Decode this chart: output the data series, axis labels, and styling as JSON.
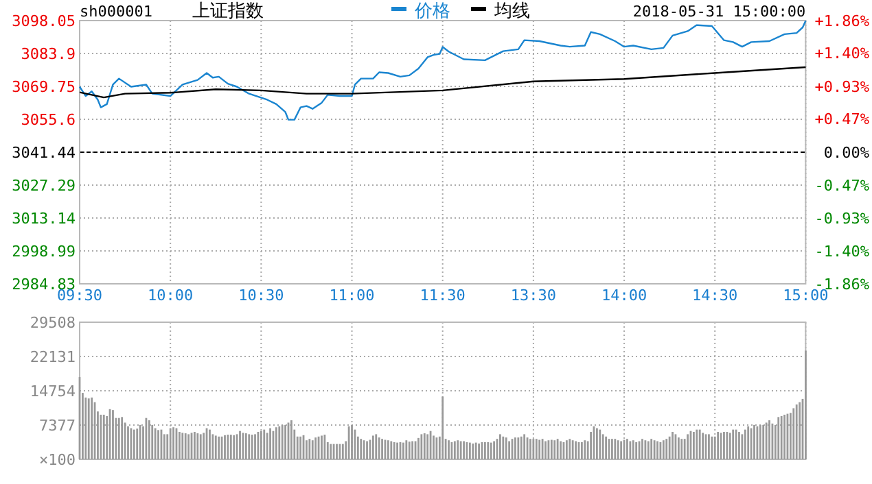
{
  "chart_data": [
    {
      "type": "line",
      "title": "上证指数",
      "subtitle": "sh000001",
      "annotations": [
        "2018-05-31 15:00:00"
      ],
      "legend": "top",
      "grid": true,
      "categories": [
        "09:30",
        null,
        null,
        null,
        null,
        null,
        null,
        null,
        null,
        null,
        null,
        null,
        null,
        null,
        null,
        null,
        null,
        null,
        null,
        null,
        null,
        null,
        null,
        null,
        null,
        null,
        null,
        null,
        null,
        null,
        "10:00",
        null,
        null,
        null,
        null,
        null,
        null,
        null,
        null,
        null,
        null,
        null,
        null,
        null,
        null,
        null,
        null,
        null,
        null,
        null,
        null,
        null,
        null,
        null,
        null,
        null,
        null,
        null,
        null,
        null,
        "10:30",
        null,
        null,
        null,
        null,
        null,
        null,
        null,
        null,
        null,
        null,
        null,
        null,
        null,
        null,
        null,
        null,
        null,
        null,
        null,
        null,
        null,
        null,
        null,
        null,
        null,
        null,
        null,
        null,
        null,
        "11:00",
        null,
        null,
        null,
        null,
        null,
        null,
        null,
        null,
        null,
        null,
        null,
        null,
        null,
        null,
        null,
        null,
        null,
        null,
        null,
        null,
        null,
        null,
        null,
        null,
        null,
        null,
        null,
        null,
        null,
        "11:30",
        null,
        null,
        null,
        null,
        null,
        null,
        null,
        null,
        null,
        null,
        null,
        null,
        null,
        null,
        null,
        null,
        null,
        null,
        null,
        null,
        null,
        null,
        null,
        null,
        null,
        null,
        null,
        null,
        null,
        "13:30",
        null,
        null,
        null,
        null,
        null,
        null,
        null,
        null,
        null,
        null,
        null,
        null,
        null,
        null,
        null,
        null,
        null,
        null,
        null,
        null,
        null,
        null,
        null,
        null,
        null,
        null,
        null,
        null,
        null,
        "14:00",
        null,
        null,
        null,
        null,
        null,
        null,
        null,
        null,
        null,
        null,
        null,
        null,
        null,
        null,
        null,
        null,
        null,
        null,
        null,
        null,
        null,
        null,
        null,
        null,
        null,
        null,
        null,
        null,
        null,
        "14:30",
        null,
        null,
        null,
        null,
        null,
        null,
        null,
        null,
        null,
        null,
        null,
        null,
        null,
        null,
        null,
        null,
        null,
        null,
        null,
        null,
        null,
        null,
        null,
        null,
        null,
        null,
        null,
        null,
        null,
        "15:00"
      ],
      "ylim": [
        2984.83,
        3098.05
      ],
      "yticks": [
        2984.83,
        2998.99,
        3013.14,
        3027.29,
        3041.44,
        3055.6,
        3069.75,
        3083.9,
        3098.05
      ],
      "y2lim": [
        -1.86,
        1.86
      ],
      "y2ticks": [
        {
          "value": -1.86,
          "label": "-1.86%"
        },
        {
          "value": -1.4,
          "label": "-1.40%"
        },
        {
          "value": -0.93,
          "label": "-0.93%"
        },
        {
          "value": -0.47,
          "label": "-0.47%"
        },
        {
          "value": 0,
          "label": "0.00%"
        },
        {
          "value": 0.47,
          "label": "+0.47%"
        },
        {
          "value": 0.93,
          "label": "+0.93%"
        },
        {
          "value": 1.4,
          "label": "+1.40%"
        },
        {
          "value": 1.86,
          "label": "+1.86%"
        }
      ],
      "ref_lines": [
        {
          "axis": "y",
          "value": 3041.44,
          "color": "#000000",
          "line_style": "dashed"
        }
      ],
      "series": [
        {
          "name": "价格",
          "color": "#1a85d0",
          "values": [
            3069.6,
            null,
            3065.6,
            null,
            3067.6,
            null,
            3064.0,
            3060.7,
            null,
            3062.1,
            null,
            3070.5,
            null,
            3073.1,
            null,
            null,
            null,
            3069.6,
            null,
            null,
            null,
            null,
            3070.5,
            null,
            3066.6,
            null,
            null,
            null,
            null,
            null,
            3065.6,
            null,
            null,
            null,
            3070.5,
            null,
            null,
            null,
            null,
            3072.5,
            null,
            null,
            3075.5,
            null,
            3073.5,
            null,
            3073.9,
            null,
            null,
            3070.9,
            null,
            null,
            3069.6,
            null,
            null,
            null,
            3066.6,
            null,
            null,
            null,
            null,
            null,
            3064.0,
            null,
            null,
            3062.1,
            null,
            null,
            3058.7,
            3055.4,
            null,
            3055.4,
            null,
            3060.7,
            null,
            3061.3,
            null,
            3060.1,
            null,
            null,
            3062.7,
            null,
            3066.1,
            null,
            null,
            null,
            3065.6,
            null,
            null,
            null,
            3065.6,
            3070.5,
            null,
            3073.1,
            null,
            null,
            null,
            3073.1,
            null,
            3075.8,
            null,
            null,
            3075.5,
            null,
            null,
            null,
            3073.9,
            null,
            null,
            3074.5,
            null,
            null,
            3077.4,
            null,
            null,
            3082.3,
            null,
            3083.3,
            null,
            3083.7,
            3086.7,
            null,
            3084.7,
            null,
            null,
            null,
            null,
            3081.4,
            null,
            null,
            null,
            null,
            null,
            null,
            3081.0,
            null,
            null,
            null,
            null,
            null,
            3084.9,
            null,
            null,
            null,
            null,
            3085.7,
            null,
            3089.6,
            null,
            null,
            null,
            null,
            3089.2,
            null,
            null,
            null,
            null,
            null,
            null,
            3087.3,
            null,
            null,
            3086.8,
            null,
            null,
            null,
            null,
            3087.3,
            null,
            3093.1,
            null,
            null,
            3092.2,
            null,
            null,
            null,
            null,
            3089.2,
            null,
            null,
            3086.8,
            null,
            null,
            3087.3,
            null,
            null,
            null,
            null,
            null,
            3085.7,
            null,
            null,
            null,
            3086.3,
            null,
            null,
            3091.6,
            null,
            null,
            null,
            null,
            3093.5,
            null,
            null,
            3096.1,
            null,
            null,
            null,
            null,
            3095.7,
            null,
            null,
            null,
            3089.6,
            null,
            null,
            3088.8,
            null,
            null,
            3086.8,
            null,
            null,
            3088.8,
            null,
            null,
            null,
            null,
            null,
            3089.2,
            null,
            null,
            null,
            null,
            3092.2,
            null,
            null,
            null,
            3092.7,
            null,
            3095.1,
            3098.0
          ]
        },
        {
          "name": "均线",
          "color": "#000000",
          "values": [
            3067.2,
            null,
            null,
            null,
            null,
            null,
            null,
            null,
            3065.0,
            null,
            null,
            null,
            null,
            null,
            null,
            3066.6,
            null,
            null,
            null,
            null,
            null,
            null,
            null,
            null,
            null,
            null,
            null,
            null,
            null,
            null,
            3067.0,
            null,
            null,
            null,
            null,
            null,
            null,
            null,
            null,
            null,
            null,
            null,
            null,
            null,
            null,
            3068.5,
            null,
            null,
            null,
            null,
            null,
            null,
            null,
            null,
            null,
            null,
            null,
            null,
            null,
            null,
            3068.0,
            null,
            null,
            null,
            null,
            null,
            null,
            null,
            null,
            null,
            null,
            null,
            null,
            null,
            null,
            3066.6,
            null,
            null,
            null,
            null,
            null,
            null,
            null,
            null,
            null,
            null,
            null,
            null,
            null,
            null,
            3066.6,
            null,
            null,
            null,
            null,
            null,
            null,
            null,
            null,
            null,
            null,
            null,
            null,
            null,
            null,
            null,
            null,
            null,
            null,
            null,
            null,
            null,
            null,
            null,
            null,
            null,
            null,
            null,
            null,
            null,
            3068.0,
            null,
            null,
            null,
            null,
            null,
            null,
            null,
            null,
            null,
            null,
            null,
            null,
            null,
            null,
            null,
            null,
            null,
            null,
            null,
            null,
            null,
            null,
            null,
            null,
            null,
            null,
            null,
            null,
            null,
            3071.9,
            null,
            null,
            null,
            null,
            null,
            null,
            null,
            null,
            null,
            null,
            null,
            null,
            null,
            null,
            null,
            null,
            null,
            null,
            null,
            null,
            null,
            null,
            null,
            null,
            null,
            null,
            null,
            null,
            null,
            3072.9,
            null,
            null,
            null,
            null,
            null,
            null,
            null,
            null,
            null,
            null,
            null,
            null,
            null,
            null,
            null,
            null,
            null,
            null,
            null,
            null,
            null,
            null,
            null,
            null,
            null,
            null,
            null,
            null,
            null,
            3075.5,
            null,
            null,
            null,
            null,
            null,
            null,
            null,
            null,
            null,
            null,
            null,
            null,
            null,
            null,
            null,
            null,
            null,
            null,
            null,
            null,
            null,
            null,
            null,
            null,
            null,
            null,
            null,
            null,
            null,
            3078.0
          ]
        }
      ]
    },
    {
      "type": "bar",
      "grid": true,
      "color": "#999999",
      "ylabel": "×100",
      "categories": [
        null,
        null,
        null,
        null,
        null,
        null,
        null,
        null,
        null,
        null,
        null,
        null,
        null,
        null,
        null,
        null,
        null,
        null,
        null,
        null,
        null,
        null,
        null,
        null,
        null,
        null,
        null,
        null,
        null,
        null,
        null,
        null,
        null,
        null,
        null,
        null,
        null,
        null,
        null,
        null,
        null,
        null,
        null,
        null,
        null,
        null,
        null,
        null,
        null,
        null,
        null,
        null,
        null,
        null,
        null,
        null,
        null,
        null,
        null,
        null,
        null,
        null,
        null,
        null,
        null,
        null,
        null,
        null,
        null,
        null,
        null,
        null,
        null,
        null,
        null,
        null,
        null,
        null,
        null,
        null,
        null,
        null,
        null,
        null,
        null,
        null,
        null,
        null,
        null,
        null,
        null,
        null,
        null,
        null,
        null,
        null,
        null,
        null,
        null,
        null,
        null,
        null,
        null,
        null,
        null,
        null,
        null,
        null,
        null,
        null,
        null,
        null,
        null,
        null,
        null,
        null,
        null,
        null,
        null,
        null,
        null,
        null,
        null,
        null,
        null,
        null,
        null,
        null,
        null,
        null,
        null,
        null,
        null,
        null,
        null,
        null,
        null,
        null,
        null,
        null,
        null,
        null,
        null,
        null,
        null,
        null,
        null,
        null,
        null,
        null,
        null,
        null,
        null,
        null,
        null,
        null,
        null,
        null,
        null,
        null,
        null,
        null,
        null,
        null,
        null,
        null,
        null,
        null,
        null,
        null,
        null,
        null,
        null,
        null,
        null,
        null,
        null,
        null,
        null,
        null,
        null,
        null,
        null,
        null,
        null,
        null,
        null,
        null,
        null,
        null,
        null,
        null,
        null,
        null,
        null,
        null,
        null,
        null,
        null,
        null,
        null,
        null,
        null,
        null,
        null,
        null,
        null,
        null,
        null,
        null,
        null,
        null,
        null,
        null,
        null,
        null,
        null,
        null,
        null,
        null,
        null,
        null,
        null,
        null,
        null,
        null,
        null,
        null,
        null,
        null,
        null,
        null,
        null,
        null,
        null,
        null,
        null,
        null,
        null,
        null,
        null
      ],
      "ylim": [
        0,
        29508
      ],
      "yticks": [
        7377,
        14754,
        22131,
        29508
      ],
      "values": [
        17700,
        14300,
        13300,
        13100,
        13300,
        12300,
        10300,
        9600,
        9600,
        9300,
        10800,
        10600,
        8900,
        8900,
        9100,
        7900,
        7100,
        6700,
        6400,
        6600,
        7400,
        7100,
        8900,
        8400,
        7400,
        6700,
        6300,
        6400,
        5400,
        5400,
        6700,
        6900,
        6700,
        5900,
        5700,
        5600,
        5400,
        5700,
        5900,
        5600,
        5400,
        5700,
        6700,
        6400,
        5400,
        5100,
        4900,
        4900,
        5200,
        5300,
        5300,
        5200,
        5400,
        6100,
        5700,
        5600,
        5400,
        5300,
        5400,
        5900,
        6100,
        6400,
        5700,
        6700,
        6100,
        6900,
        7100,
        7400,
        7400,
        7900,
        8400,
        6400,
        4900,
        4900,
        5200,
        4100,
        4400,
        4100,
        4700,
        4900,
        5100,
        5300,
        3700,
        3300,
        3300,
        3300,
        3300,
        3300,
        3900,
        7100,
        7400,
        6400,
        4900,
        4400,
        4100,
        3900,
        4200,
        5100,
        5400,
        4700,
        4400,
        4200,
        4100,
        3900,
        3700,
        3600,
        3700,
        3600,
        4100,
        3800,
        3900,
        3900,
        4600,
        5400,
        5600,
        5400,
        6100,
        5100,
        4700,
        4900,
        13500,
        4400,
        4100,
        3700,
        3900,
        4100,
        3900,
        3900,
        3700,
        3600,
        3400,
        3600,
        3400,
        3700,
        3700,
        3700,
        3600,
        3900,
        4400,
        5400,
        4900,
        4700,
        3900,
        4400,
        4700,
        4700,
        4900,
        5400,
        4700,
        4400,
        4400,
        4400,
        4200,
        4400,
        3900,
        4100,
        4200,
        4100,
        4400,
        3900,
        3700,
        4100,
        4400,
        4100,
        3900,
        3700,
        3700,
        4100,
        3900,
        5900,
        7100,
        6700,
        6400,
        5400,
        4900,
        4400,
        4400,
        4400,
        4100,
        3900,
        4200,
        4400,
        3900,
        4100,
        3700,
        3900,
        4400,
        4100,
        3900,
        4400,
        4100,
        3900,
        3700,
        4100,
        4400,
        4900,
        5900,
        5400,
        4700,
        4400,
        4400,
        5400,
        6100,
        5900,
        6400,
        6400,
        5700,
        5400,
        5400,
        4900,
        4900,
        5900,
        5700,
        5900,
        5900,
        5700,
        6400,
        6400,
        5900,
        5400,
        6400,
        7100,
        6700,
        7400,
        7100,
        7400,
        7400,
        7900,
        8400,
        7700,
        7400,
        9100,
        9300,
        9600,
        9800,
        10000,
        11000,
        11800,
        12300,
        13000,
        23400
      ]
    }
  ]
}
